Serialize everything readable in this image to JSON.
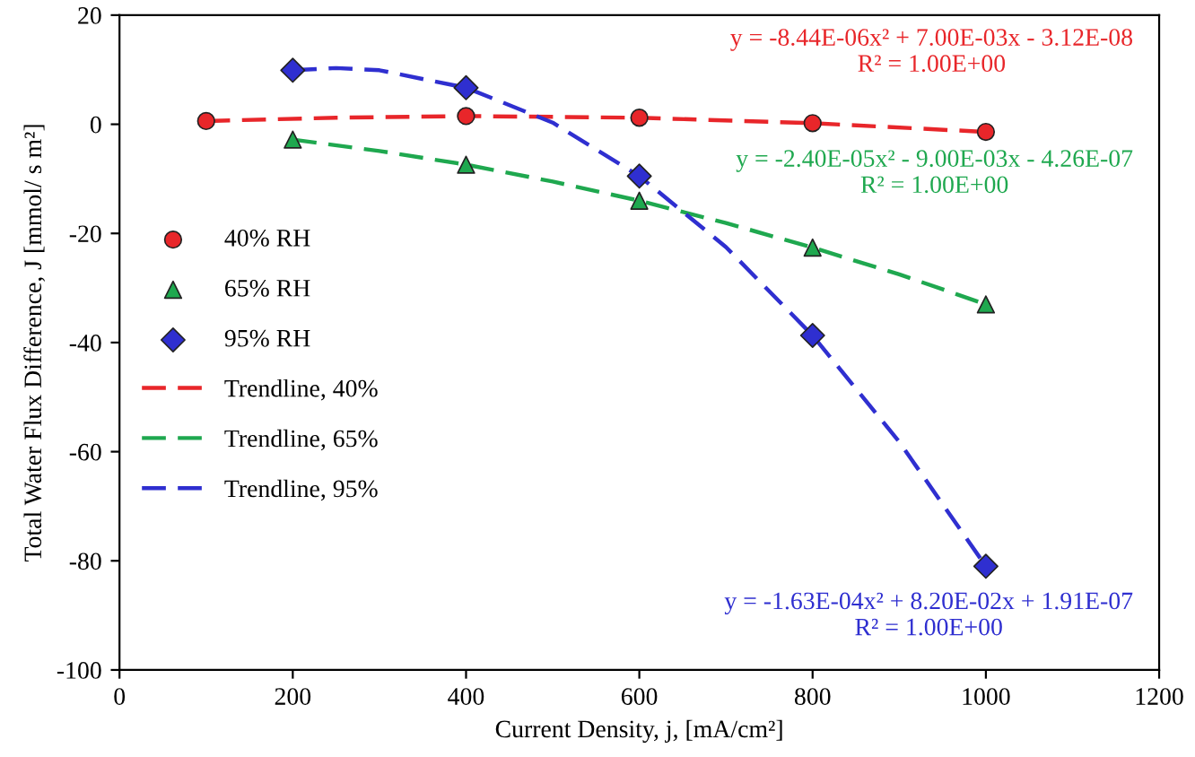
{
  "chart_data": {
    "type": "scatter",
    "xlabel": "Current Density, j, [mA/cm²]",
    "ylabel": "Total Water Flux Difference, J [mmol/ s m²]",
    "xlim": [
      0,
      1200
    ],
    "xticks": [
      0,
      200,
      400,
      600,
      800,
      1000,
      1200
    ],
    "ylim": [
      -100,
      20
    ],
    "yticks": [
      -100,
      -80,
      -60,
      -40,
      -20,
      0,
      20
    ],
    "legend": "center left",
    "grid": false,
    "series": [
      {
        "name": "40% RH",
        "marker": "circle",
        "color": "#e8262a",
        "x": [
          100,
          400,
          600,
          800,
          1000
        ],
        "values": [
          0.6,
          1.5,
          1.2,
          0.2,
          -1.4
        ]
      },
      {
        "name": "65% RH",
        "marker": "triangle",
        "color": "#1fa84f",
        "x": [
          200,
          400,
          600,
          800,
          1000
        ],
        "values": [
          -2.8,
          -7.4,
          -14.0,
          -22.6,
          -33.0
        ]
      },
      {
        "name": "95% RH",
        "marker": "diamond",
        "color": "#2f2fd0",
        "x": [
          200,
          400,
          600,
          800,
          1000
        ],
        "values": [
          9.9,
          6.7,
          -9.5,
          -38.7,
          -81.0
        ]
      },
      {
        "name": "Trendline, 40%",
        "type": "line",
        "line_style": "dashed",
        "marker": "none",
        "color": "#e8262a",
        "x": [
          100,
          250,
          400,
          600,
          800,
          1000
        ],
        "values": [
          0.6,
          1.2,
          1.5,
          1.2,
          0.2,
          -1.4
        ]
      },
      {
        "name": "Trendline, 65%",
        "type": "line",
        "line_style": "dashed",
        "marker": "none",
        "color": "#1fa84f",
        "x": [
          200,
          300,
          400,
          500,
          600,
          700,
          800,
          900,
          1000
        ],
        "values": [
          -2.8,
          -4.9,
          -7.4,
          -10.5,
          -14.0,
          -18.1,
          -22.6,
          -27.5,
          -33.0
        ]
      },
      {
        "name": "Trendline, 95%",
        "type": "line",
        "line_style": "dashed",
        "marker": "none",
        "color": "#2f2fd0",
        "x": [
          200,
          250,
          300,
          400,
          500,
          600,
          700,
          800,
          900,
          1000
        ],
        "values": [
          9.9,
          10.3,
          9.9,
          6.7,
          0.3,
          -9.5,
          -22.5,
          -38.7,
          -58.2,
          -81.0
        ]
      }
    ],
    "annotations": [
      "y = -8.44E-06x² + 7.00E-03x - 3.12E-08\nR² = 1.00E+00",
      "y = -2.40E-05x² - 9.00E-03x - 4.26E-07\nR² = 1.00E+00",
      "y = -1.63E-04x² + 8.20E-02x + 1.91E-07\nR² = 1.00E+00"
    ]
  }
}
